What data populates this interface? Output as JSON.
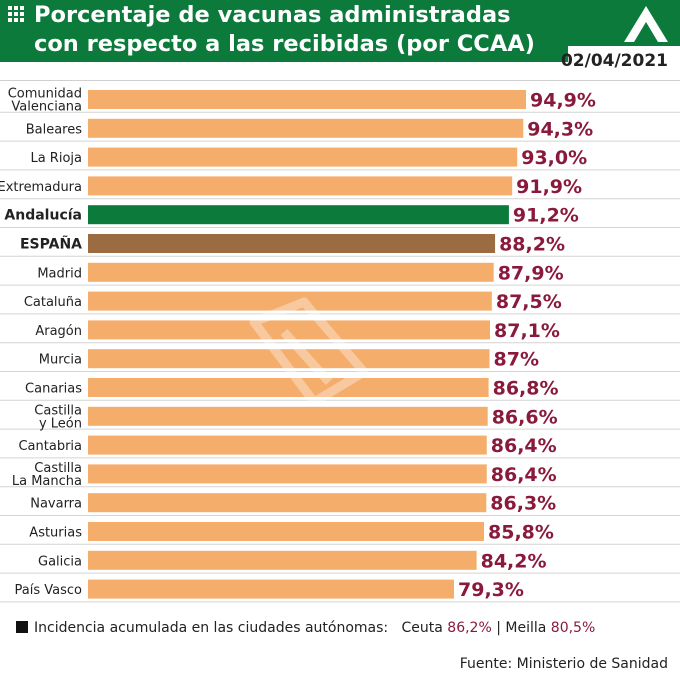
{
  "header": {
    "title_line1": "Porcentaje de vacunas administradas",
    "title_line2": "con respecto a las recibidas (por CCAA)",
    "date": "02/04/2021"
  },
  "colors": {
    "header_green": "#0b7a3b",
    "bar_default": "#f5ad6c",
    "bar_andalucia": "#0b7a3b",
    "bar_espana": "#9b6b42",
    "value_text": "#8a1a3c"
  },
  "icons": [
    "grid-icon",
    "andalucia-logo-icon"
  ],
  "chart_data": {
    "type": "bar",
    "orientation": "horizontal",
    "unit": "%",
    "categories": [
      [
        "Comunidad",
        "Valenciana"
      ],
      [
        "Baleares"
      ],
      [
        "La Rioja"
      ],
      [
        "Extremadura"
      ],
      [
        "Andalucía"
      ],
      [
        "ESPAÑA"
      ],
      [
        "Madrid"
      ],
      [
        "Cataluña"
      ],
      [
        "Aragón"
      ],
      [
        "Murcia"
      ],
      [
        "Canarias"
      ],
      [
        "Castilla",
        "y León"
      ],
      [
        "Cantabria"
      ],
      [
        "Castilla",
        "La Mancha"
      ],
      [
        "Navarra"
      ],
      [
        "Asturias"
      ],
      [
        "Galicia"
      ],
      [
        "País Vasco"
      ]
    ],
    "values": [
      94.9,
      94.3,
      93.0,
      91.9,
      91.2,
      88.2,
      87.9,
      87.5,
      87.1,
      87.0,
      86.8,
      86.6,
      86.4,
      86.4,
      86.3,
      85.8,
      84.2,
      79.3
    ],
    "value_labels": [
      "94,9%",
      "94,3%",
      "93,0%",
      "91,9%",
      "91,2%",
      "88,2%",
      "87,9%",
      "87,5%",
      "87,1%",
      "87%",
      "86,8%",
      "86,6%",
      "86,4%",
      "86,4%",
      "86,3%",
      "85,8%",
      "84,2%",
      "79,3%"
    ],
    "highlight": {
      "Andalucía": "bar_andalucia",
      "ESPAÑA": "bar_espana"
    },
    "bold_categories": [
      "Andalucía",
      "ESPAÑA"
    ]
  },
  "footer": {
    "note_label": "Incidencia acumulada en las ciudades autónomas:",
    "ceuta_label": "Ceuta",
    "ceuta_value": "86,2%",
    "separator": "|",
    "melilla_label": "Meilla",
    "melilla_value": "80,5%",
    "source": "Fuente: Ministerio de Sanidad"
  }
}
